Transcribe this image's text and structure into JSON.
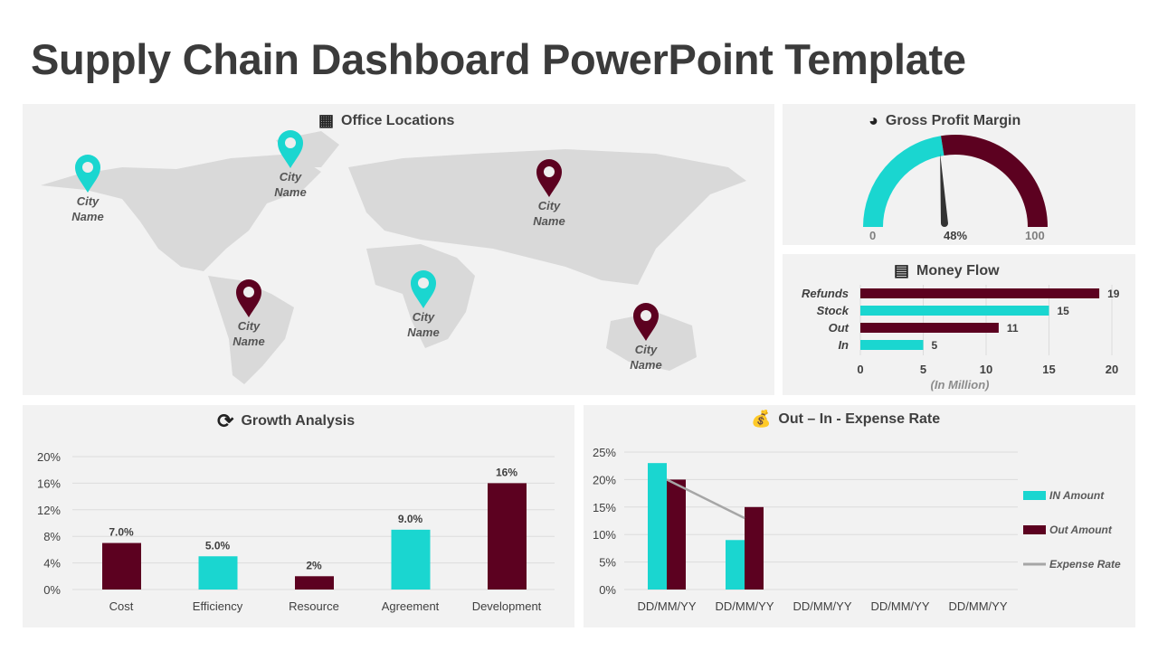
{
  "title": "Supply Chain Dashboard PowerPoint Template",
  "colors": {
    "teal": "#1ad6d0",
    "maroon": "#5c0120",
    "grid": "#dcdcdc",
    "line": "#a6a6a6"
  },
  "map": {
    "title": "Office Locations",
    "icon": "building-icon",
    "pins": [
      {
        "label": "City Name",
        "color": "teal"
      },
      {
        "label": "City Name",
        "color": "teal"
      },
      {
        "label": "City Name",
        "color": "maroon"
      },
      {
        "label": "City Name",
        "color": "maroon"
      },
      {
        "label": "City Name",
        "color": "teal"
      },
      {
        "label": "City Name",
        "color": "maroon"
      }
    ]
  },
  "gauge": {
    "title": "Gross Profit Margin",
    "icon": "profit-pie-icon",
    "min_label": "0",
    "max_label": "100",
    "value": 48,
    "value_label": "48%"
  },
  "chart_data": [
    {
      "type": "bar",
      "orientation": "horizontal",
      "title": "Money Flow",
      "categories": [
        "Refunds",
        "Stock",
        "Out",
        "In"
      ],
      "values": [
        19,
        15,
        11,
        5
      ],
      "value_labels": [
        "19",
        "15",
        "11",
        "5"
      ],
      "xlim": [
        0,
        20
      ],
      "xticks": [
        "0",
        "5",
        "10",
        "15",
        "20"
      ],
      "xlabel": "(In Million)",
      "grid": true
    },
    {
      "type": "bar",
      "title": "Growth Analysis",
      "categories": [
        "Cost",
        "Efficiency",
        "Resource",
        "Agreement",
        "Development"
      ],
      "values": [
        7,
        5,
        2,
        9,
        16
      ],
      "value_labels": [
        "7.0%",
        "5.0%",
        "2%",
        "9.0%",
        "16%"
      ],
      "ylim": [
        0,
        20
      ],
      "yticks": [
        "0%",
        "4%",
        "8%",
        "12%",
        "16%",
        "20%"
      ],
      "grid": true
    },
    {
      "type": "bar",
      "title": "Out – In - Expense Rate",
      "categories": [
        "DD/MM/YY",
        "DD/MM/YY",
        "DD/MM/YY",
        "DD/MM/YY",
        "DD/MM/YY"
      ],
      "ylim": [
        0,
        25
      ],
      "yticks": [
        "0%",
        "5%",
        "10%",
        "15%",
        "20%",
        "25%"
      ],
      "grid": true,
      "legend": "right",
      "series": [
        {
          "name": "IN Amount",
          "type": "bar",
          "values": [
            23,
            9,
            null,
            null,
            null
          ]
        },
        {
          "name": "Out Amount",
          "type": "bar",
          "values": [
            20,
            15,
            null,
            null,
            null
          ]
        },
        {
          "name": "Expense Rate",
          "type": "line",
          "values": [
            20,
            13,
            null,
            null,
            null
          ]
        }
      ]
    }
  ],
  "icons": {
    "money_flow": "cash-stack-icon",
    "growth": "growth-chart-icon",
    "expense": "money-bag-icon"
  }
}
